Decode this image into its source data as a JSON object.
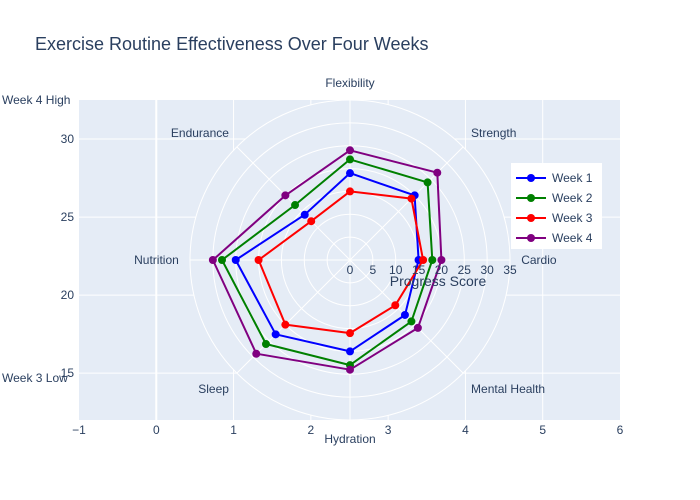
{
  "chart_data": {
    "type": "radar",
    "title": "Exercise Routine Effectiveness Over Four Weeks",
    "categories": [
      "Cardio",
      "Strength",
      "Flexibility",
      "Endurance",
      "Nutrition",
      "Sleep",
      "Hydration",
      "Mental Health"
    ],
    "radial_axis": {
      "title": "Progress Score",
      "range": [
        0,
        35
      ],
      "ticks": [
        0,
        5,
        10,
        15,
        20,
        25,
        30,
        35
      ],
      "tick_labels": [
        "0",
        "5",
        "10",
        "15",
        "20",
        "25",
        "30",
        "35"
      ]
    },
    "series": [
      {
        "name": "Week 1",
        "color": "#0000ff",
        "values": [
          15,
          20,
          19,
          14,
          25,
          23,
          20,
          17
        ]
      },
      {
        "name": "Week 2",
        "color": "#008000",
        "values": [
          18,
          24,
          22,
          17,
          28,
          26,
          23,
          19
        ]
      },
      {
        "name": "Week 3",
        "color": "#ff0000",
        "values": [
          16,
          19,
          15,
          12,
          20,
          20,
          16,
          14
        ]
      },
      {
        "name": "Week 4",
        "color": "#800080",
        "values": [
          20,
          27,
          24,
          20,
          30,
          29,
          24,
          21
        ]
      }
    ],
    "cartesian_axes": {
      "x_range": [
        -1,
        6
      ],
      "x_ticks": [
        -1,
        0,
        1,
        2,
        3,
        4,
        5,
        6
      ],
      "x_tick_labels": [
        "−1",
        "0",
        "1",
        "2",
        "3",
        "4",
        "5",
        "6"
      ],
      "y_range": [
        12,
        32.5
      ],
      "y_ticks": [
        15,
        20,
        25,
        30
      ],
      "y_tick_labels": [
        "15",
        "20",
        "25",
        "30"
      ]
    },
    "annotations": [
      {
        "text": "Week 4 High",
        "y": 32.5
      },
      {
        "text": "Week 3 Low",
        "y": 14.7
      }
    ],
    "legend": "right"
  }
}
